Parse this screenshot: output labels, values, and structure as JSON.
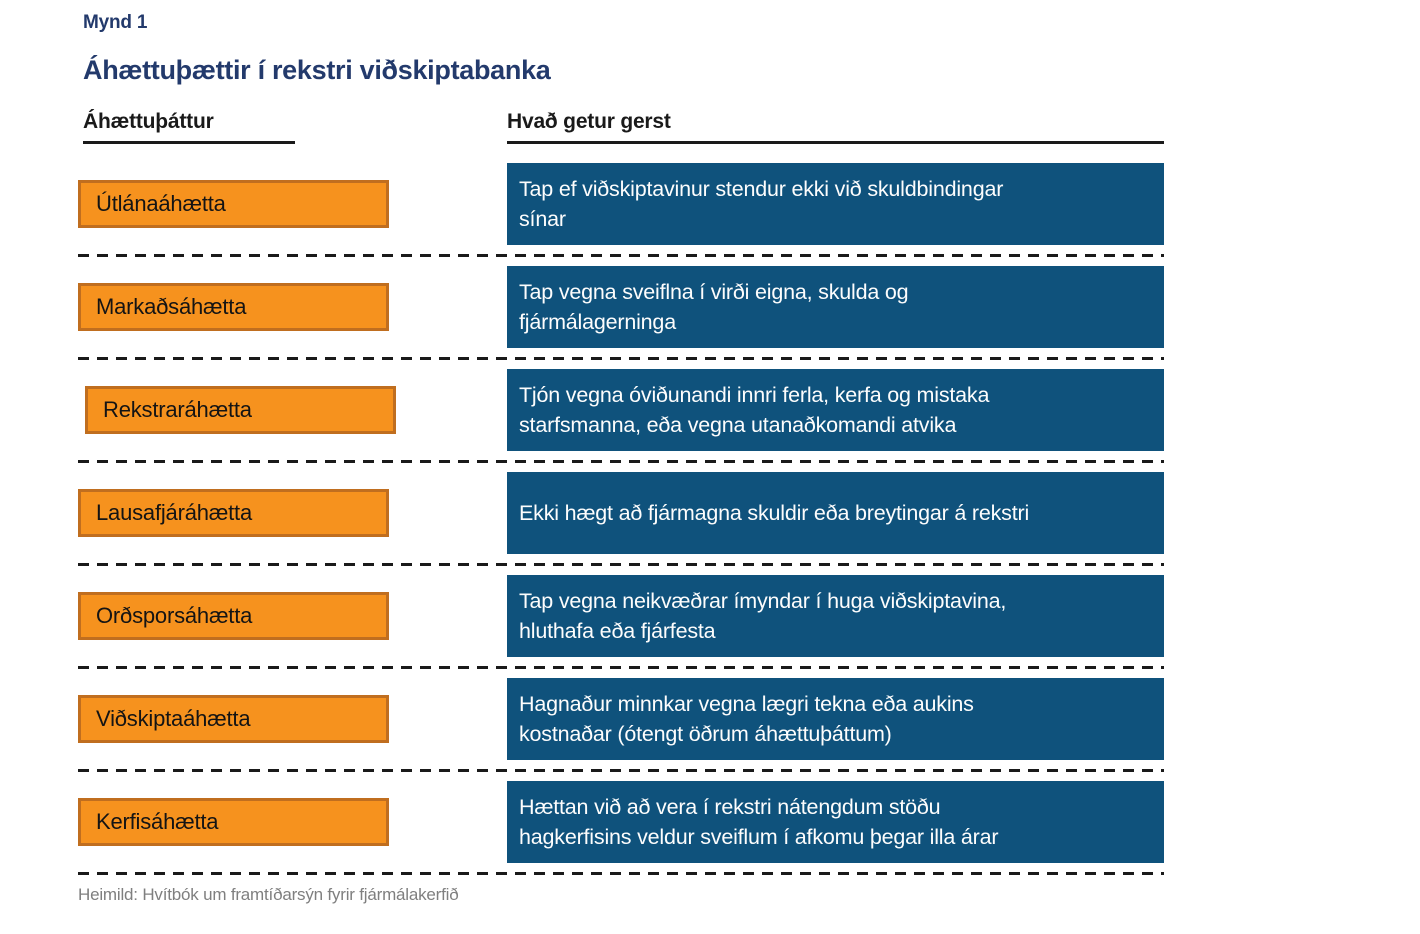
{
  "figure": {
    "label": "Mynd 1",
    "title": "Áhættuþættir í rekstri viðskiptabanka"
  },
  "columns": {
    "left_header": "Áhættuþáttur",
    "right_header": "Hvað getur gerst"
  },
  "rows": [
    {
      "factor": "Útlánaáhætta",
      "description": "Tap ef viðskiptavinur stendur ekki við skuldbindingar\nsínar"
    },
    {
      "factor": "Markaðsáhætta",
      "description": "Tap vegna sveiflna í virði eigna, skulda og\nfjármálagerninga"
    },
    {
      "factor": "Rekstraráhætta",
      "description": "Tjón vegna óviðunandi innri ferla, kerfa og mistaka\nstarfsmanna, eða vegna utanaðkomandi atvika"
    },
    {
      "factor": "Lausafjáráhætta",
      "description": "Ekki hægt að fjármagna skuldir eða breytingar á rekstri"
    },
    {
      "factor": "Orðsporsáhætta",
      "description": "Tap vegna neikvæðrar ímyndar í huga viðskiptavina,\nhluthafa eða fjárfesta"
    },
    {
      "factor": "Viðskiptaáhætta",
      "description": "Hagnaður minnkar vegna lægri tekna eða aukins\nkostnaðar (ótengt öðrum áhættuþáttum)"
    },
    {
      "factor": "Kerfisáhætta",
      "description": "Hættan við að vera í rekstri nátengdum stöðu\nhagkerfisins veldur sveiflum í afkomu þegar illa árar"
    }
  ],
  "footer": {
    "source": "Heimild: Hvítbók um framtíðarsýn fyrir fjármálakerfið"
  },
  "colors": {
    "navy": "#233a6c",
    "blue": "#0f527c",
    "orange": "#f6921e",
    "orange_border": "#c06e1f",
    "footer_gray": "#7f7f7f"
  }
}
